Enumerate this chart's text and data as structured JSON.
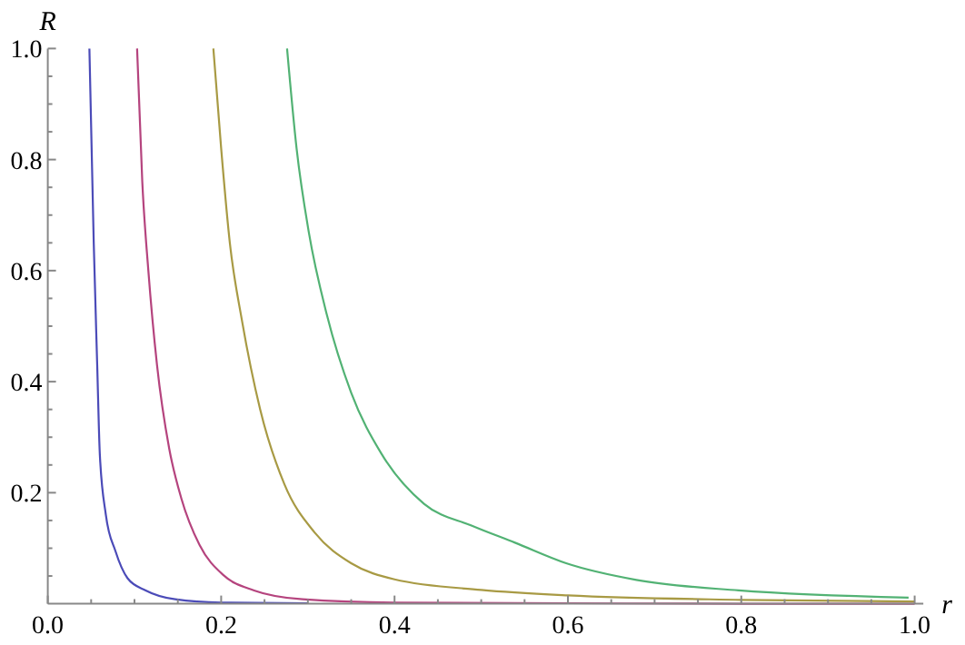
{
  "chart_data": {
    "type": "line",
    "xlabel": "r",
    "ylabel": "R",
    "xlim": [
      0,
      1.01
    ],
    "ylim": [
      0,
      1
    ],
    "xticks": [
      {
        "value": 0,
        "label": "0.0"
      },
      {
        "value": 0.05,
        "label": null
      },
      {
        "value": 0.1,
        "label": null
      },
      {
        "value": 0.15,
        "label": null
      },
      0.2,
      {
        "value": 0.25,
        "label": null
      },
      {
        "value": 0.3,
        "label": null
      },
      {
        "value": 0.35,
        "label": null
      },
      0.4,
      {
        "value": 0.45,
        "label": null
      },
      {
        "value": 0.5,
        "label": null
      },
      {
        "value": 0.55,
        "label": null
      },
      0.6,
      {
        "value": 0.65,
        "label": null
      },
      {
        "value": 0.7,
        "label": null
      },
      {
        "value": 0.75,
        "label": null
      },
      0.8,
      {
        "value": 0.85,
        "label": null
      },
      {
        "value": 0.9,
        "label": null
      },
      {
        "value": 0.95,
        "label": null
      },
      {
        "value": 1,
        "label": "1.0"
      }
    ],
    "yticks": [
      {
        "value": 0.05,
        "label": null
      },
      {
        "value": 0.1,
        "label": null
      },
      {
        "value": 0.15,
        "label": null
      },
      0.2,
      {
        "value": 0.25,
        "label": null
      },
      {
        "value": 0.3,
        "label": null
      },
      {
        "value": 0.35,
        "label": null
      },
      0.4,
      {
        "value": 0.45,
        "label": null
      },
      {
        "value": 0.5,
        "label": null
      },
      {
        "value": 0.55,
        "label": null
      },
      0.6,
      {
        "value": 0.65,
        "label": null
      },
      {
        "value": 0.7,
        "label": null
      },
      {
        "value": 0.75,
        "label": null
      },
      0.8,
      {
        "value": 0.85,
        "label": null
      },
      {
        "value": 0.9,
        "label": null
      },
      {
        "value": 0.95,
        "label": null
      },
      {
        "value": 1,
        "label": "1.0"
      }
    ],
    "grid": false,
    "marker": "none",
    "line_style": "solid",
    "series": [
      {
        "color": "#4b4bb8",
        "x": [
          0.048,
          0.053,
          0.057,
          0.06,
          0.067,
          0.078,
          0.092,
          0.113,
          0.147,
          0.2,
          0.3
        ],
        "values": [
          1,
          0.65,
          0.43,
          0.27,
          0.16,
          0.095,
          0.046,
          0.024,
          0.008,
          0.002,
          0.001
        ]
      },
      {
        "color": "#b5447e",
        "x": [
          0.103,
          0.109,
          0.116,
          0.126,
          0.14,
          0.154,
          0.175,
          0.203,
          0.238,
          0.294,
          0.4,
          0.6,
          0.8,
          1.0
        ],
        "values": [
          1,
          0.76,
          0.6,
          0.43,
          0.28,
          0.19,
          0.106,
          0.051,
          0.024,
          0.008,
          0.002,
          0.001,
          0,
          0
        ]
      },
      {
        "color": "#a89a44",
        "x": [
          0.191,
          0.2,
          0.21,
          0.224,
          0.245,
          0.273,
          0.308,
          0.35,
          0.4,
          0.5,
          0.6,
          0.8,
          1.0
        ],
        "values": [
          1,
          0.82,
          0.65,
          0.51,
          0.35,
          0.215,
          0.128,
          0.073,
          0.044,
          0.025,
          0.015,
          0.007,
          0.004
        ]
      },
      {
        "color": "#52b274",
        "x": [
          0.276,
          0.287,
          0.301,
          0.322,
          0.35,
          0.385,
          0.434,
          0.49,
          0.539,
          0.598,
          0.679,
          0.797,
          0.993
        ],
        "values": [
          1,
          0.82,
          0.67,
          0.52,
          0.38,
          0.27,
          0.18,
          0.14,
          0.11,
          0.073,
          0.043,
          0.024,
          0.011
        ]
      }
    ]
  }
}
